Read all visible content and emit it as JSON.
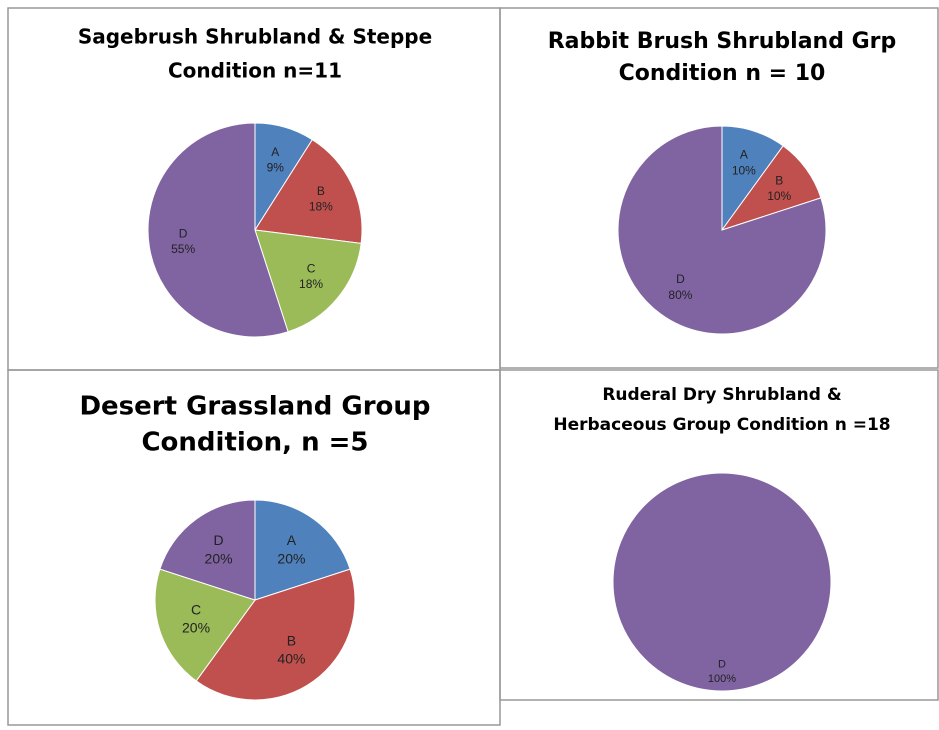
{
  "chart_data": [
    {
      "type": "pie",
      "title_lines": [
        "Sagebrush Shrubland & Steppe",
        "Condition n=11"
      ],
      "categories": [
        "A",
        "B",
        "C",
        "D"
      ],
      "values": [
        9,
        18,
        18,
        55
      ],
      "value_labels": [
        "9%",
        "18%",
        "18%",
        "55%"
      ],
      "colors": [
        "#4f81bd",
        "#c0504d",
        "#9bbb59",
        "#8064a2"
      ]
    },
    {
      "type": "pie",
      "title_lines": [
        "Rabbit Brush Shrubland Grp",
        "Condition n = 10"
      ],
      "categories": [
        "A",
        "B",
        "D"
      ],
      "values": [
        10,
        10,
        80
      ],
      "value_labels": [
        "10%",
        "10%",
        "80%"
      ],
      "colors": [
        "#4f81bd",
        "#c0504d",
        "#8064a2"
      ]
    },
    {
      "type": "pie",
      "title_lines": [
        "Desert Grassland Group",
        "Condition, n =5"
      ],
      "categories": [
        "A",
        "B",
        "C",
        "D"
      ],
      "values": [
        20,
        40,
        20,
        20
      ],
      "value_labels": [
        "20%",
        "40%",
        "20%",
        "20%"
      ],
      "colors": [
        "#4f81bd",
        "#c0504d",
        "#9bbb59",
        "#8064a2"
      ]
    },
    {
      "type": "pie",
      "title_lines": [
        "Ruderal Dry Shrubland &",
        "Herbaceous Group Condition n =18"
      ],
      "categories": [
        "D"
      ],
      "values": [
        100
      ],
      "value_labels": [
        "100%"
      ],
      "colors": [
        "#8064a2"
      ]
    }
  ]
}
